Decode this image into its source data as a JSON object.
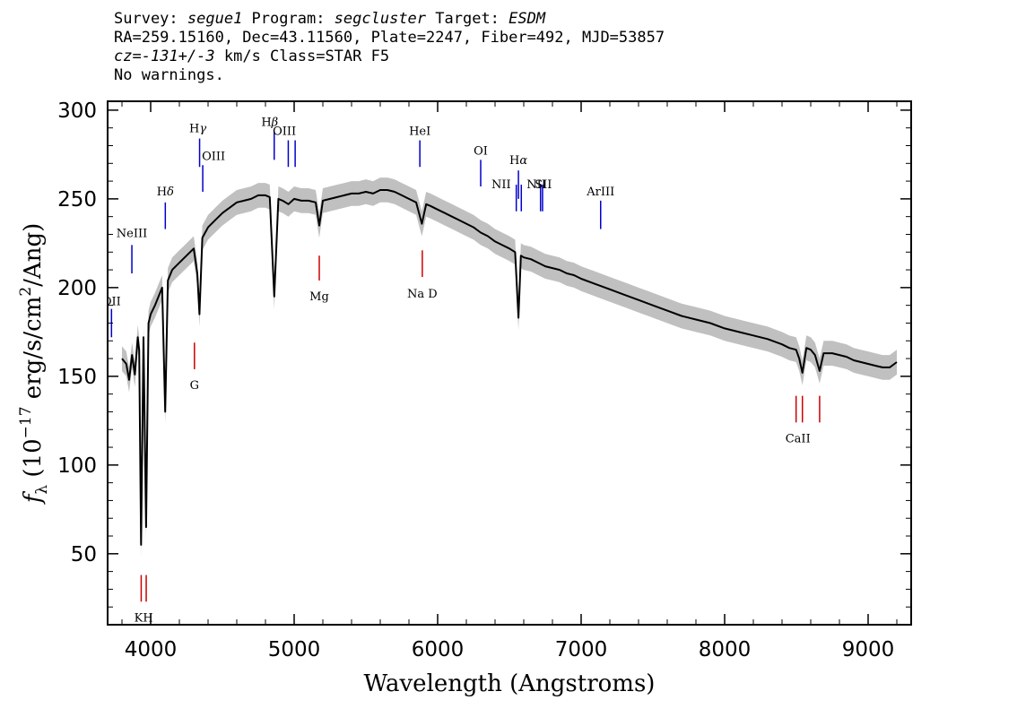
{
  "header": {
    "survey_label": "Survey: ",
    "survey": "segue1",
    "program_label": " Program: ",
    "program": "segcluster",
    "target_label": " Target: ",
    "target": "ESDM",
    "line2": "RA=259.15160, Dec=43.11560, Plate=2247, Fiber=492, MJD=53857",
    "cz_label": "cz",
    "cz_eq": "=",
    "cz_value": "-131+/-3",
    "cz_rest": " km/s Class=STAR F5",
    "line4": "No warnings."
  },
  "colors": {
    "spectrum": "#000000",
    "error_band": "#c0c0c0",
    "emission_lines": "#0000cc",
    "absorption_lines": "#cc0000"
  },
  "chart_data": {
    "type": "line",
    "title": "",
    "xlabel": "Wavelength (Angstroms)",
    "ylabel_main": "f",
    "ylabel_sub": "λ",
    "ylabel_open": " (10",
    "ylabel_exp1": "−17",
    "ylabel_mid": " erg/s/cm",
    "ylabel_exp2": "2",
    "ylabel_close": "/Ang)",
    "xlim": [
      3700,
      9300
    ],
    "ylim": [
      10,
      305
    ],
    "x_ticks": [
      4000,
      5000,
      6000,
      7000,
      8000,
      9000
    ],
    "x_tick_labels": [
      "4000",
      "5000",
      "6000",
      "7000",
      "8000",
      "9000"
    ],
    "y_ticks": [
      50,
      100,
      150,
      200,
      250,
      300
    ],
    "y_tick_labels": [
      "50",
      "100",
      "150",
      "200",
      "250",
      "300"
    ],
    "grid": false,
    "legend": "none",
    "series": [
      {
        "x": [
          3800,
          3830,
          3850,
          3870,
          3890,
          3910,
          3920,
          3933,
          3950,
          3968,
          3985,
          4000,
          4030,
          4060,
          4080,
          4101,
          4120,
          4150,
          4200,
          4250,
          4300,
          4325,
          4340,
          4360,
          4400,
          4450,
          4500,
          4550,
          4600,
          4650,
          4700,
          4750,
          4800,
          4830,
          4861,
          4890,
          4920,
          4960,
          5000,
          5050,
          5100,
          5150,
          5175,
          5200,
          5250,
          5300,
          5350,
          5400,
          5450,
          5500,
          5550,
          5600,
          5650,
          5700,
          5750,
          5800,
          5850,
          5890,
          5920,
          5950,
          6000,
          6050,
          6100,
          6150,
          6200,
          6250,
          6300,
          6350,
          6400,
          6450,
          6500,
          6540,
          6563,
          6580,
          6600,
          6650,
          6700,
          6750,
          6800,
          6850,
          6900,
          6950,
          7000,
          7100,
          7200,
          7300,
          7400,
          7500,
          7600,
          7700,
          7800,
          7900,
          8000,
          8100,
          8200,
          8300,
          8400,
          8450,
          8498,
          8520,
          8542,
          8570,
          8600,
          8630,
          8662,
          8690,
          8750,
          8800,
          8850,
          8900,
          8950,
          9000,
          9050,
          9100,
          9150,
          9200
        ],
        "y": [
          160,
          157,
          148,
          162,
          151,
          172,
          165,
          55,
          172,
          65,
          180,
          185,
          190,
          196,
          200,
          130,
          204,
          210,
          214,
          218,
          222,
          208,
          185,
          228,
          234,
          238,
          242,
          245,
          248,
          249,
          250,
          252,
          252,
          251,
          195,
          250,
          249,
          247,
          250,
          249,
          249,
          248,
          235,
          249,
          250,
          251,
          252,
          253,
          253,
          254,
          253,
          255,
          255,
          254,
          252,
          250,
          248,
          236,
          247,
          246,
          244,
          242,
          240,
          238,
          236,
          234,
          231,
          229,
          226,
          224,
          222,
          220,
          183,
          218,
          217,
          216,
          214,
          212,
          211,
          210,
          208,
          207,
          205,
          202,
          199,
          196,
          193,
          190,
          187,
          184,
          182,
          180,
          177,
          175,
          173,
          171,
          168,
          166,
          165,
          160,
          152,
          166,
          165,
          162,
          153,
          163,
          163,
          162,
          161,
          159,
          158,
          157,
          156,
          155,
          155,
          158
        ]
      }
    ],
    "error_band_width": 7,
    "emission_lines": [
      {
        "label": "NeIII",
        "wave": 3869,
        "y_low": 208,
        "y_high": 224
      },
      {
        "label": "OII",
        "wave": 3727,
        "y_low": 172,
        "y_high": 188
      },
      {
        "label": "Hδ",
        "wave": 4102,
        "y_low": 233,
        "y_high": 248
      },
      {
        "label": "Hγ",
        "wave": 4341,
        "y_low": 268,
        "y_high": 284
      },
      {
        "label": "OIII",
        "wave": 4363,
        "y_low": 254,
        "y_high": 269
      },
      {
        "label": "Hβ",
        "wave": 4861,
        "y_low": 272,
        "y_high": 288
      },
      {
        "label": "OIII",
        "wave": 4959,
        "y_low": 268,
        "y_high": 283
      },
      {
        "label": "OIII_2",
        "wave": 5007,
        "y_low": 268,
        "y_high": 283
      },
      {
        "label": "HeI",
        "wave": 5876,
        "y_low": 268,
        "y_high": 283
      },
      {
        "label": "OI",
        "wave": 6300,
        "y_low": 257,
        "y_high": 272
      },
      {
        "label": "NII",
        "wave": 6548,
        "y_low": 243,
        "y_high": 258
      },
      {
        "label": "Hα",
        "wave": 6563,
        "y_low": 250,
        "y_high": 266
      },
      {
        "label": "NII_2",
        "wave": 6583,
        "y_low": 243,
        "y_high": 258
      },
      {
        "label": "SII",
        "wave": 6717,
        "y_low": 243,
        "y_high": 258
      },
      {
        "label": "SII_2",
        "wave": 6731,
        "y_low": 243,
        "y_high": 258
      },
      {
        "label": "ArIII",
        "wave": 7136,
        "y_low": 233,
        "y_high": 249
      }
    ],
    "absorption_lines": [
      {
        "label": "K",
        "wave": 3934,
        "y_low": 23,
        "y_high": 38
      },
      {
        "label": "H",
        "wave": 3969,
        "y_low": 23,
        "y_high": 38
      },
      {
        "label": "G",
        "wave": 4305,
        "y_low": 154,
        "y_high": 169
      },
      {
        "label": "Mg",
        "wave": 5175,
        "y_low": 204,
        "y_high": 218
      },
      {
        "label": "Na D",
        "wave": 5893,
        "y_low": 206,
        "y_high": 221
      },
      {
        "label": "CaII",
        "wave": 8498,
        "y_low": 124,
        "y_high": 139
      },
      {
        "label": "CaII_2",
        "wave": 8542,
        "y_low": 124,
        "y_high": 139
      },
      {
        "label": "CaII_3",
        "wave": 8662,
        "y_low": 124,
        "y_high": 139
      }
    ],
    "line_label_text": {
      "NeIII": "NeIII",
      "OII": "OII",
      "Hδ_main": "H",
      "Hδ_sub": "δ",
      "Hγ_main": "H",
      "Hγ_sub": "γ",
      "OIII": "OIII",
      "Hβ_main": "H",
      "Hβ_sub": "β",
      "OIII_2": "OIII",
      "HeI": "HeI",
      "OI": "OI",
      "NII": "NII",
      "Hα_main": "H",
      "Hα_sub": "α",
      "NII_2": "NII",
      "SII": "SII",
      "KH": "KH",
      "G": "G",
      "Mg": "Mg",
      "Na D": "Na D",
      "ArIII": "ArIII",
      "CaII": "CaII"
    }
  }
}
